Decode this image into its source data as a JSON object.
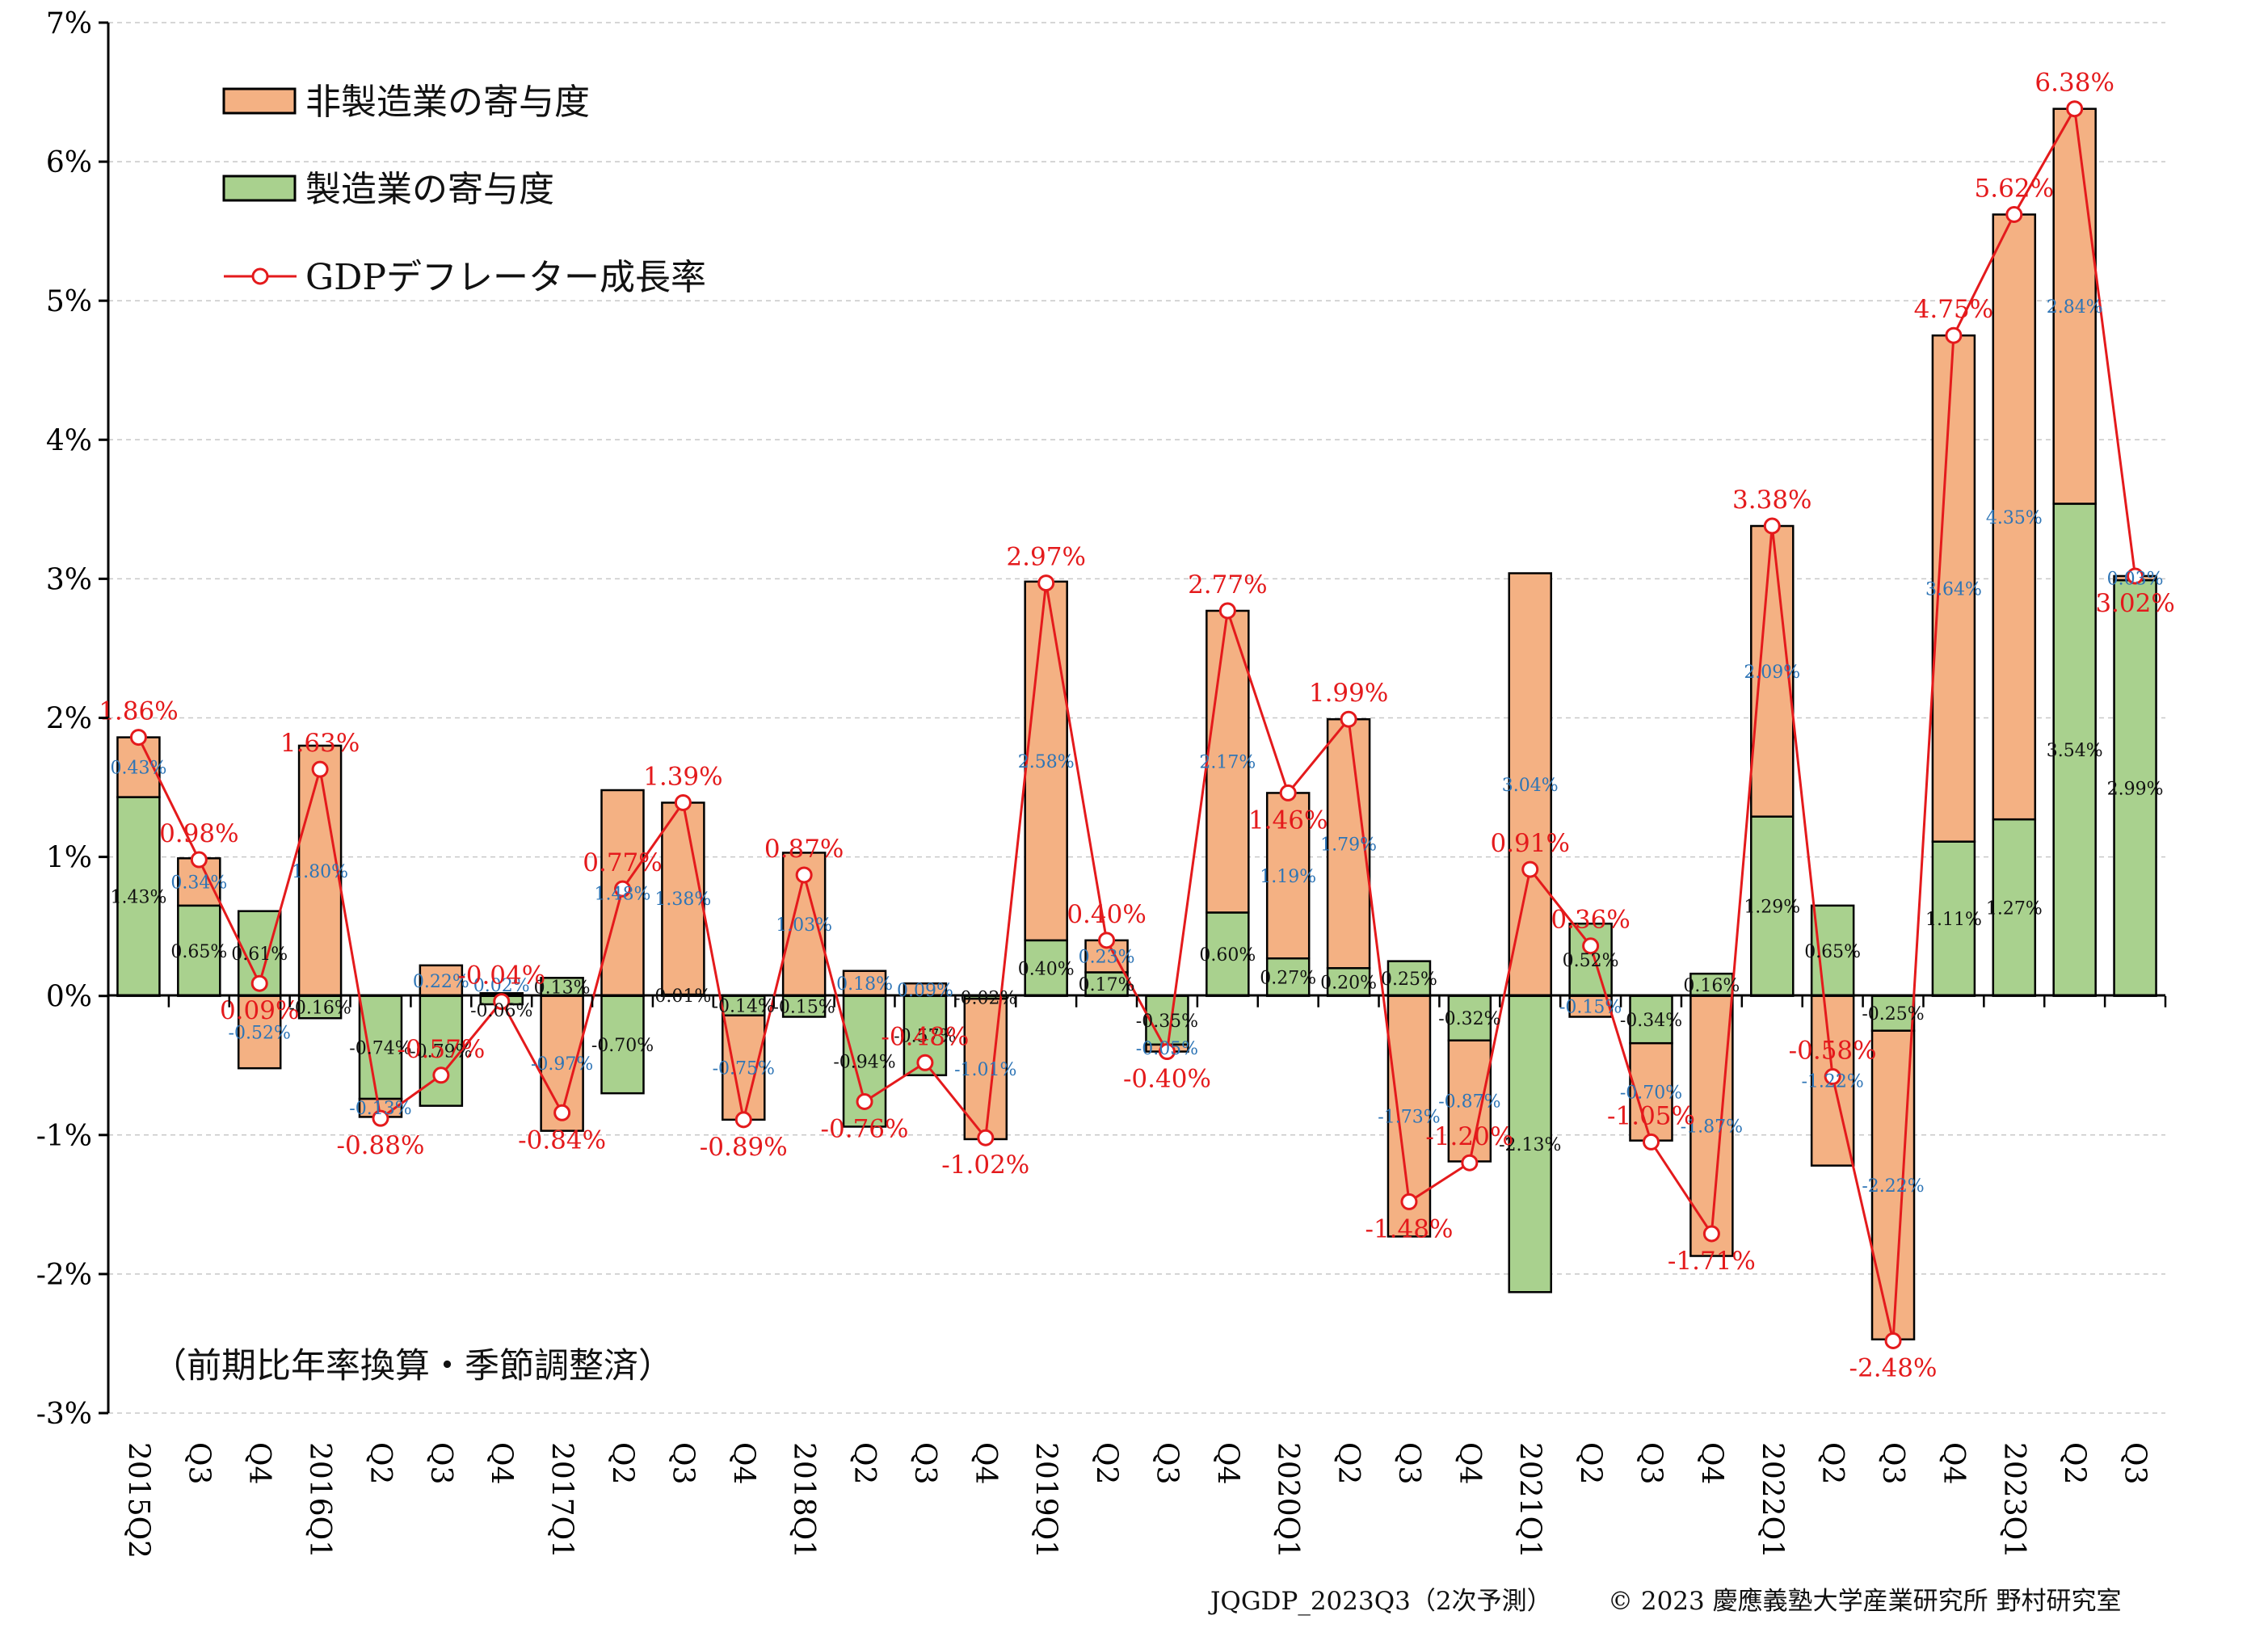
{
  "colors": {
    "non_manufacturing": "#f4b183",
    "manufacturing": "#a9d18e",
    "deflator_line": "#e41a1c",
    "label_blue": "#2e75b6",
    "grid": "#c8c8c8"
  },
  "legend": {
    "non_manufacturing": "非製造業の寄与度",
    "manufacturing": "製造業の寄与度",
    "deflator": "GDPデフレーター成長率"
  },
  "note": "（前期比年率換算・季節調整済）",
  "footer": {
    "source": "JQGDP_2023Q3（2次予測）",
    "copyright": "© 2023 慶應義塾大学産業研究所 野村研究室"
  },
  "chart_data": {
    "type": "bar",
    "stacked": true,
    "categories": [
      "2015Q2",
      "Q3",
      "Q4",
      "2016Q1",
      "Q2",
      "Q3",
      "Q4",
      "2017Q1",
      "Q2",
      "Q3",
      "Q4",
      "2018Q1",
      "Q2",
      "Q3",
      "Q4",
      "2019Q1",
      "Q2",
      "Q3",
      "Q4",
      "2020Q1",
      "Q2",
      "Q3",
      "Q4",
      "2021Q1",
      "Q2",
      "Q3",
      "Q4",
      "2022Q1",
      "Q2",
      "Q3",
      "Q4",
      "2023Q1",
      "Q2",
      "Q3"
    ],
    "ylim": [
      -3,
      7
    ],
    "yticks": [
      "-3%",
      "-2%",
      "-1%",
      "0%",
      "1%",
      "2%",
      "3%",
      "4%",
      "5%",
      "6%",
      "7%"
    ],
    "grid": true,
    "legend_position": "top-left",
    "series": [
      {
        "name": "非製造業の寄与度",
        "kind": "bar",
        "values": [
          0.43,
          0.34,
          -0.52,
          1.8,
          -0.13,
          0.22,
          0.02,
          -0.97,
          1.48,
          1.38,
          -0.75,
          1.03,
          0.18,
          0.09,
          -1.01,
          2.58,
          0.23,
          -0.05,
          2.17,
          1.19,
          1.79,
          -1.73,
          -0.87,
          3.04,
          -0.15,
          -0.7,
          -1.87,
          2.09,
          -1.22,
          -2.22,
          3.64,
          4.35,
          2.84,
          0.03
        ],
        "labels": [
          "0.43%",
          "0.34%",
          "-0.52%",
          "1.80%",
          "-0.13%",
          "0.22%",
          "0.02%",
          "-0.97%",
          "1.48%",
          "1.38%",
          "-0.75%",
          "1.03%",
          "0.18%",
          "0.09%",
          "-1.01%",
          "2.58%",
          "0.23%",
          "-0.05%",
          "2.17%",
          "1.19%",
          "1.79%",
          "-1.73%",
          "-0.87%",
          "3.04%",
          "-0.15%",
          "-0.70%",
          "-1.87%",
          "2.09%",
          "-1.22%",
          "-2.22%",
          "3.64%",
          "4.35%",
          "2.84%",
          "0.03%"
        ]
      },
      {
        "name": "製造業の寄与度",
        "kind": "bar",
        "values": [
          1.43,
          0.65,
          0.61,
          -0.16,
          -0.74,
          -0.79,
          -0.06,
          0.13,
          -0.7,
          0.01,
          -0.14,
          -0.15,
          -0.94,
          -0.57,
          -0.02,
          0.4,
          0.17,
          -0.35,
          0.6,
          0.27,
          0.2,
          0.25,
          -0.32,
          -2.13,
          0.52,
          -0.34,
          0.16,
          1.29,
          0.65,
          -0.25,
          1.11,
          1.27,
          3.54,
          2.99
        ],
        "labels": [
          "1.43%",
          "0.65%",
          "0.61%",
          "-0.16%",
          "-0.74%",
          "-0.79%",
          "-0.06%",
          "0.13%",
          "-0.70%",
          "0.01%",
          "-0.14%",
          "-0.15%",
          "-0.94%",
          "-0.57%",
          "-0.02%",
          "0.40%",
          "0.17%",
          "-0.35%",
          "0.60%",
          "0.27%",
          "0.20%",
          "0.25%",
          "-0.32%",
          "-2.13%",
          "0.52%",
          "-0.34%",
          "0.16%",
          "1.29%",
          "0.65%",
          "-0.25%",
          "1.11%",
          "1.27%",
          "3.54%",
          "2.99%"
        ]
      },
      {
        "name": "GDPデフレーター成長率",
        "kind": "line",
        "values": [
          1.86,
          0.98,
          0.09,
          1.63,
          -0.88,
          -0.57,
          -0.04,
          -0.84,
          0.77,
          1.39,
          -0.89,
          0.87,
          -0.76,
          -0.48,
          -1.02,
          2.97,
          0.4,
          -0.4,
          2.77,
          1.46,
          1.99,
          -1.48,
          -1.2,
          0.91,
          0.36,
          -1.05,
          -1.71,
          3.38,
          -0.58,
          -2.48,
          4.75,
          5.62,
          6.38,
          3.02
        ],
        "labels": [
          "1.86%",
          "0.98%",
          "0.09%",
          "1.63%",
          "-0.88%",
          "-0.57%",
          "-0.04%",
          "-0.84%",
          "0.77%",
          "1.39%",
          "-0.89%",
          "0.87%",
          "-0.76%",
          "-0.48%",
          "-1.02%",
          "2.97%",
          "0.40%",
          "-0.40%",
          "2.77%",
          "1.46%",
          "1.99%",
          "-1.48%",
          "-1.20%",
          "0.91%",
          "0.36%",
          "-1.05%",
          "-1.71%",
          "3.38%",
          "-0.58%",
          "-2.48%",
          "4.75%",
          "5.62%",
          "6.38%",
          "3.02%"
        ]
      }
    ]
  }
}
